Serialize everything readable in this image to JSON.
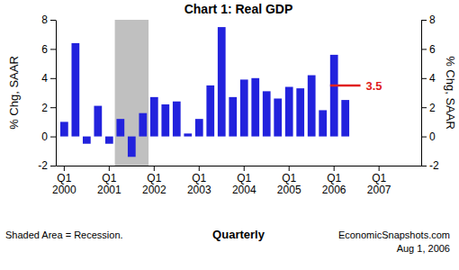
{
  "chart_data": {
    "type": "bar",
    "title": "Chart 1: Real GDP",
    "ylabel": "% Chg, SAAR",
    "y2label": "% Chg, SAAR",
    "xlabel": "Quarterly",
    "footnote": "Shaded Area = Recession.",
    "source": "EconomicSnapshots.com",
    "date": "Aug 1, 2006",
    "categories": [
      "Q1 2000",
      null,
      null,
      null,
      "Q1 2001",
      null,
      null,
      null,
      "Q1 2002",
      null,
      null,
      null,
      "Q1 2003",
      null,
      null,
      null,
      "Q1 2004",
      null,
      null,
      null,
      "Q1 2005",
      null,
      null,
      null,
      "Q1 2006",
      null,
      null,
      null,
      "Q1 2007",
      null,
      null,
      null
    ],
    "values": [
      1.0,
      6.4,
      -0.5,
      2.1,
      -0.5,
      1.2,
      -1.4,
      1.6,
      2.7,
      2.2,
      2.4,
      0.2,
      1.2,
      3.5,
      7.5,
      2.7,
      3.9,
      4.0,
      3.1,
      2.6,
      3.4,
      3.3,
      4.2,
      1.8,
      5.6,
      2.5,
      null,
      null,
      null,
      null,
      null,
      null
    ],
    "color": "#2222dd",
    "recession": {
      "from": 5,
      "to": 7,
      "color": "#c0c0c0"
    },
    "annotations": [
      {
        "label": "3.5",
        "value": 3.5,
        "color": "#e02020"
      }
    ],
    "ylim": [
      -2,
      8
    ],
    "yticks": [
      -2,
      0,
      2,
      4,
      6,
      8
    ],
    "y2lim": [
      -2,
      8
    ],
    "y2ticks": [
      -2,
      0,
      2,
      4,
      6,
      8
    ],
    "grid": false
  }
}
